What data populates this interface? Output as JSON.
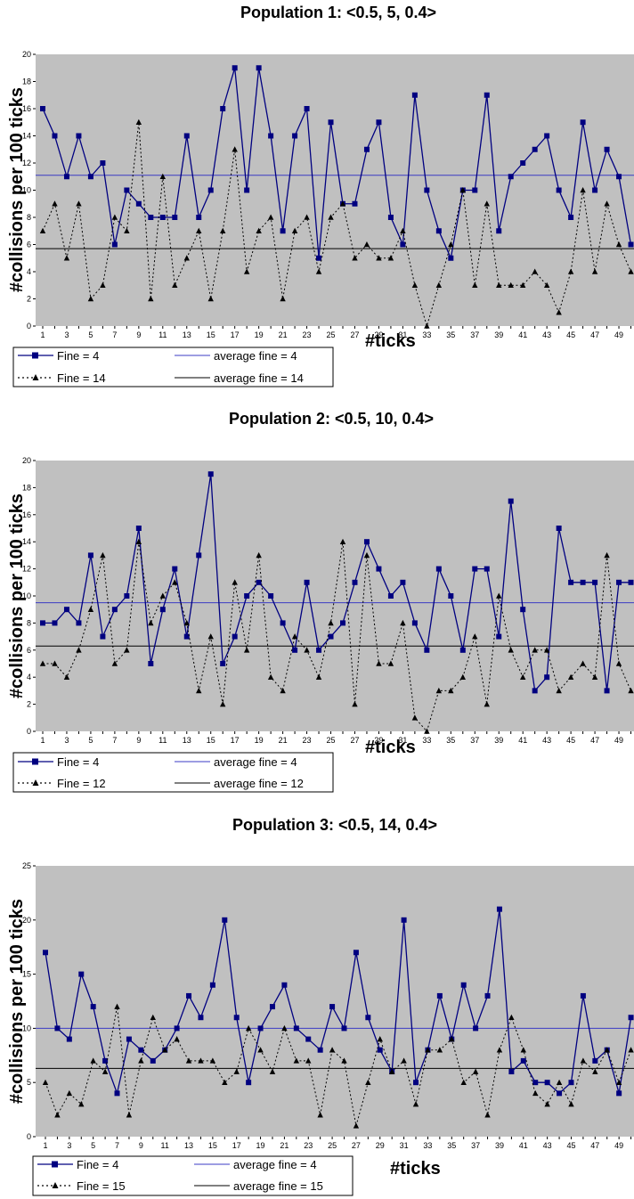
{
  "colors": {
    "plot_background": "#c0c0c0",
    "series_fine4": "#000080",
    "average_fine4": "#3b3bc4",
    "series_other": "#000000",
    "average_other": "#000000"
  },
  "chart_data": [
    {
      "type": "line",
      "title": "Population 1: <0.5, 5, 0.4>",
      "xlabel": "#ticks",
      "ylabel": "#collisions per 100 ticks",
      "ylim": [
        0,
        20
      ],
      "yticks": [
        0,
        2,
        4,
        6,
        8,
        10,
        12,
        14,
        16,
        18,
        20
      ],
      "x": [
        1,
        2,
        3,
        4,
        5,
        6,
        7,
        8,
        9,
        10,
        11,
        12,
        13,
        14,
        15,
        16,
        17,
        18,
        19,
        20,
        21,
        22,
        23,
        24,
        25,
        26,
        27,
        28,
        29,
        30,
        31,
        32,
        33,
        34,
        35,
        36,
        37,
        38,
        39,
        40,
        41,
        42,
        43,
        44,
        45,
        46,
        47,
        48,
        49,
        50
      ],
      "xtick_labels": [
        "1",
        "3",
        "5",
        "7",
        "9",
        "11",
        "13",
        "15",
        "17",
        "19",
        "21",
        "23",
        "25",
        "27",
        "29",
        "31",
        "33",
        "35",
        "37",
        "39",
        "41",
        "43",
        "45",
        "47",
        "49"
      ],
      "grid": false,
      "legend_position": "bottom-left",
      "series": [
        {
          "name": "Fine = 4",
          "style": "solid-square",
          "values": [
            16,
            14,
            11,
            14,
            11,
            12,
            6,
            10,
            9,
            8,
            8,
            8,
            14,
            8,
            10,
            16,
            19,
            10,
            19,
            14,
            7,
            14,
            16,
            5,
            15,
            9,
            9,
            13,
            15,
            8,
            6,
            17,
            10,
            7,
            5,
            10,
            10,
            17,
            7,
            11,
            12,
            13,
            14,
            10,
            8,
            15,
            10,
            13,
            11,
            6
          ]
        },
        {
          "name": "Fine = 14",
          "style": "dotted-triangle",
          "values": [
            7,
            9,
            5,
            9,
            2,
            3,
            8,
            7,
            15,
            2,
            11,
            3,
            5,
            7,
            2,
            7,
            13,
            4,
            7,
            8,
            2,
            7,
            8,
            4,
            8,
            9,
            5,
            6,
            5,
            5,
            7,
            3,
            0,
            3,
            6,
            10,
            3,
            9,
            3,
            3,
            3,
            4,
            3,
            1,
            4,
            10,
            4,
            9,
            6,
            4
          ]
        }
      ],
      "averages": [
        {
          "name": "average fine = 4",
          "value": 11.1
        },
        {
          "name": "average fine = 14",
          "value": 5.7
        }
      ]
    },
    {
      "type": "line",
      "title": "Population 2: <0.5, 10, 0.4>",
      "xlabel": "#ticks",
      "ylabel": "#collisions per 100 ticks",
      "ylim": [
        0,
        20
      ],
      "yticks": [
        0,
        2,
        4,
        6,
        8,
        10,
        12,
        14,
        16,
        18,
        20
      ],
      "x": [
        1,
        2,
        3,
        4,
        5,
        6,
        7,
        8,
        9,
        10,
        11,
        12,
        13,
        14,
        15,
        16,
        17,
        18,
        19,
        20,
        21,
        22,
        23,
        24,
        25,
        26,
        27,
        28,
        29,
        30,
        31,
        32,
        33,
        34,
        35,
        36,
        37,
        38,
        39,
        40,
        41,
        42,
        43,
        44,
        45,
        46,
        47,
        48,
        49,
        50
      ],
      "xtick_labels": [
        "1",
        "3",
        "5",
        "7",
        "9",
        "11",
        "13",
        "15",
        "17",
        "19",
        "21",
        "23",
        "25",
        "27",
        "29",
        "31",
        "33",
        "35",
        "37",
        "39",
        "41",
        "43",
        "45",
        "47",
        "49"
      ],
      "grid": false,
      "legend_position": "bottom-left",
      "series": [
        {
          "name": "Fine = 4",
          "style": "solid-square",
          "values": [
            8,
            8,
            9,
            8,
            13,
            7,
            9,
            10,
            15,
            5,
            9,
            12,
            7,
            13,
            19,
            5,
            7,
            10,
            11,
            10,
            8,
            6,
            11,
            6,
            7,
            8,
            11,
            14,
            12,
            10,
            11,
            8,
            6,
            12,
            10,
            6,
            12,
            12,
            7,
            17,
            9,
            3,
            4,
            15,
            11,
            11,
            11,
            3,
            11,
            11
          ]
        },
        {
          "name": "Fine = 12",
          "style": "dotted-triangle",
          "values": [
            5,
            5,
            4,
            6,
            9,
            13,
            5,
            6,
            14,
            8,
            10,
            11,
            8,
            3,
            7,
            2,
            11,
            6,
            13,
            4,
            3,
            7,
            6,
            4,
            8,
            14,
            2,
            13,
            5,
            5,
            8,
            1,
            0,
            3,
            3,
            4,
            7,
            2,
            10,
            6,
            4,
            6,
            6,
            3,
            4,
            5,
            4,
            13,
            5,
            3
          ]
        }
      ],
      "averages": [
        {
          "name": "average fine = 4",
          "value": 9.5
        },
        {
          "name": "average fine = 12",
          "value": 6.3
        }
      ]
    },
    {
      "type": "line",
      "title": "Population 3: <0.5, 14, 0.4>",
      "xlabel": "#ticks",
      "ylabel": "#collisions per 100 ticks",
      "ylim": [
        0,
        25
      ],
      "yticks": [
        0,
        5,
        10,
        15,
        20,
        25
      ],
      "x": [
        1,
        2,
        3,
        4,
        5,
        6,
        7,
        8,
        9,
        10,
        11,
        12,
        13,
        14,
        15,
        16,
        17,
        18,
        19,
        20,
        21,
        22,
        23,
        24,
        25,
        26,
        27,
        28,
        29,
        30,
        31,
        32,
        33,
        34,
        35,
        36,
        37,
        38,
        39,
        40,
        41,
        42,
        43,
        44,
        45,
        46,
        47,
        48,
        49,
        50
      ],
      "xtick_labels": [
        "1",
        "3",
        "5",
        "7",
        "9",
        "11",
        "13",
        "15",
        "17",
        "19",
        "21",
        "23",
        "25",
        "27",
        "29",
        "31",
        "33",
        "35",
        "37",
        "39",
        "41",
        "43",
        "45",
        "47",
        "49"
      ],
      "grid": false,
      "legend_position": "bottom-left",
      "series": [
        {
          "name": "Fine = 4",
          "style": "solid-square",
          "values": [
            17,
            10,
            9,
            15,
            12,
            7,
            4,
            9,
            8,
            7,
            8,
            10,
            13,
            11,
            14,
            20,
            11,
            5,
            10,
            12,
            14,
            10,
            9,
            8,
            12,
            10,
            17,
            11,
            8,
            6,
            20,
            5,
            8,
            13,
            9,
            14,
            10,
            13,
            21,
            6,
            7,
            5,
            5,
            4,
            5,
            13,
            7,
            8,
            4,
            11
          ]
        },
        {
          "name": "Fine = 15",
          "style": "dotted-triangle",
          "values": [
            5,
            2,
            4,
            3,
            7,
            6,
            12,
            2,
            7,
            11,
            8,
            9,
            7,
            7,
            7,
            5,
            6,
            10,
            8,
            6,
            10,
            7,
            7,
            2,
            8,
            7,
            1,
            5,
            9,
            6,
            7,
            3,
            8,
            8,
            9,
            5,
            6,
            2,
            8,
            11,
            8,
            4,
            3,
            5,
            3,
            7,
            6,
            8,
            5,
            8
          ]
        }
      ],
      "averages": [
        {
          "name": "average fine = 4",
          "value": 10
        },
        {
          "name": "average fine = 15",
          "value": 6.3
        }
      ]
    }
  ]
}
